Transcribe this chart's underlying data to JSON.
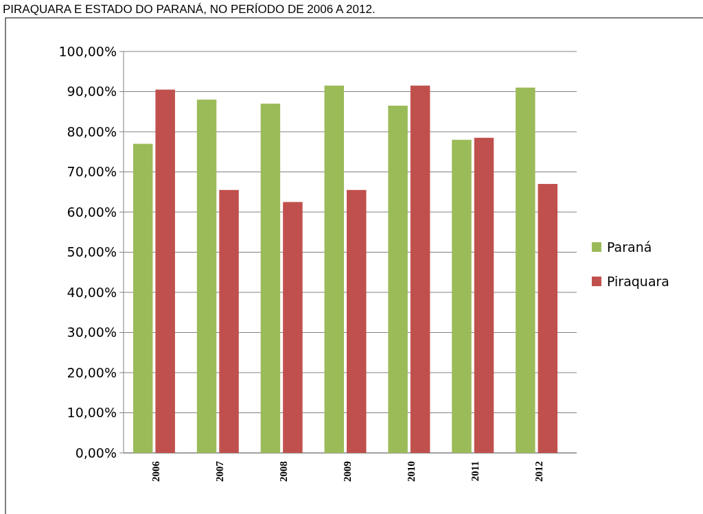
{
  "chart_data": {
    "type": "bar",
    "title": "PIRAQUARA E ESTADO DO PARANÁ, NO PERÍODO DE 2006 A 2012.",
    "categories": [
      "2006",
      "2007",
      "2008",
      "2009",
      "2010",
      "2011",
      "2012"
    ],
    "series": [
      {
        "name": "Paraná",
        "color": "#9bbb59",
        "values": [
          77,
          88,
          87,
          91.5,
          86.5,
          78,
          91
        ]
      },
      {
        "name": "Piraquara",
        "color": "#c0504d",
        "values": [
          90.5,
          65.5,
          62.5,
          65.5,
          91.5,
          78.5,
          67
        ]
      }
    ],
    "ylim": [
      0,
      100
    ],
    "yticks": [
      {
        "value": 0,
        "label": "0,00%"
      },
      {
        "value": 10,
        "label": "10,00%"
      },
      {
        "value": 20,
        "label": "20,00%"
      },
      {
        "value": 30,
        "label": "30,00%"
      },
      {
        "value": 40,
        "label": "40,00%"
      },
      {
        "value": 50,
        "label": "50,00%"
      },
      {
        "value": 60,
        "label": "60,00%"
      },
      {
        "value": 70,
        "label": "70,00%"
      },
      {
        "value": 80,
        "label": "80,00%"
      },
      {
        "value": 90,
        "label": "90,00%"
      },
      {
        "value": 100,
        "label": "100,00%"
      }
    ],
    "grid": "y",
    "legend": "right"
  }
}
